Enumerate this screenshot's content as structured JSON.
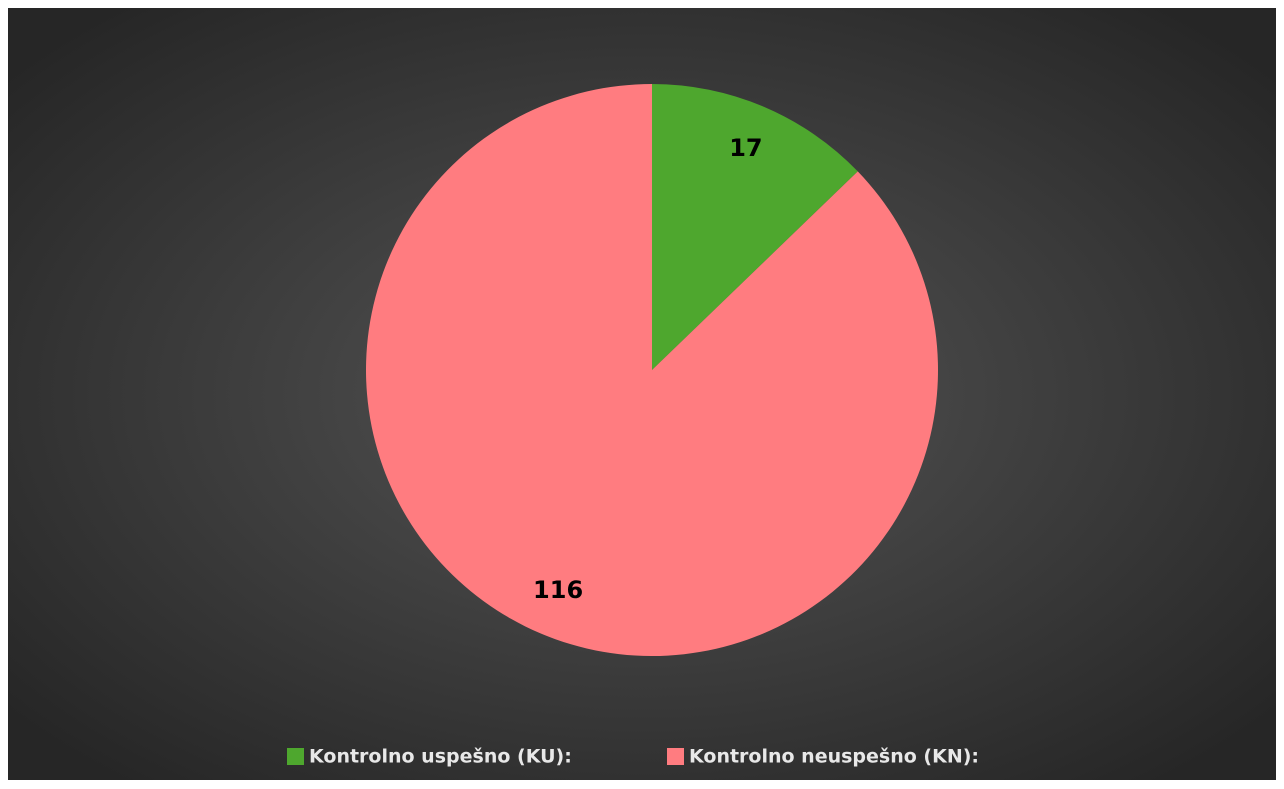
{
  "chart_data": {
    "type": "pie",
    "categories": [
      "Kontrolno uspešno (KU):",
      "Kontrolno neuspešno (KN):"
    ],
    "values": [
      17,
      116
    ],
    "colors": [
      "#4ea72e",
      "#ff7c80"
    ],
    "legend": "bottom"
  }
}
